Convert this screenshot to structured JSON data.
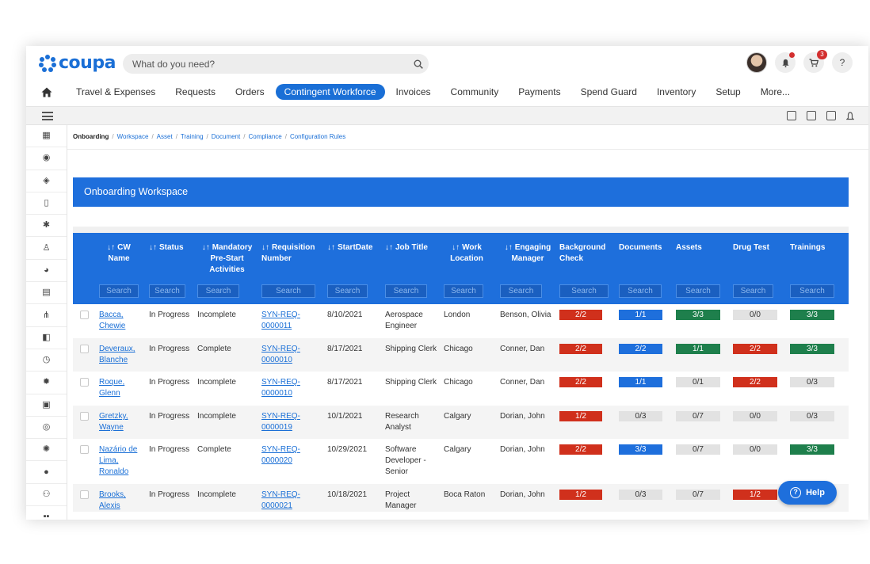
{
  "app": {
    "brand": "coupa",
    "brand_color": "#1a6fd6"
  },
  "search": {
    "placeholder": "What do you need?"
  },
  "header": {
    "cart_badge": "3",
    "help_label": "?"
  },
  "nav": {
    "items": [
      "Travel & Expenses",
      "Requests",
      "Orders",
      "Contingent Workforce",
      "Invoices",
      "Community",
      "Payments",
      "Spend Guard",
      "Inventory",
      "Setup",
      "More..."
    ],
    "active": "Contingent Workforce"
  },
  "breadcrumb": {
    "current": "Onboarding",
    "links": [
      "Workspace",
      "Asset",
      "Training",
      "Document",
      "Compliance",
      "Configuration Rules"
    ],
    "separator": "/"
  },
  "workspace": {
    "title": "Onboarding Workspace"
  },
  "table": {
    "sort_glyph": "↓↑",
    "search_placeholder": "Search",
    "columns": [
      "CW Name",
      "Status",
      "Mandatory Pre-Start Activities",
      "Requisition Number",
      "StartDate",
      "Job Title",
      "Work Location",
      "Engaging Manager",
      "Background Check",
      "Documents",
      "Assets",
      "Drug Test",
      "Trainings"
    ],
    "rows": [
      {
        "name": "Bacca, Chewie",
        "status": "In Progress",
        "mandatory": "Incomplete",
        "req": "SYN-REQ-0000011",
        "start": "8/10/2021",
        "job": "Aerospace Engineer",
        "location": "London",
        "manager": "Benson, Olivia",
        "bg": "2/2",
        "bg_c": "red",
        "docs": "1/1",
        "docs_c": "blue",
        "assets": "3/3",
        "assets_c": "green",
        "drug": "0/0",
        "drug_c": "grey",
        "train": "3/3",
        "train_c": "green"
      },
      {
        "name": "Deveraux, Blanche",
        "status": "In Progress",
        "mandatory": "Complete",
        "req": "SYN-REQ-0000010",
        "start": "8/17/2021",
        "job": "Shipping Clerk",
        "location": "Chicago",
        "manager": "Conner, Dan",
        "bg": "2/2",
        "bg_c": "red",
        "docs": "2/2",
        "docs_c": "blue",
        "assets": "1/1",
        "assets_c": "green",
        "drug": "2/2",
        "drug_c": "red",
        "train": "3/3",
        "train_c": "green"
      },
      {
        "name": "Roque, Glenn",
        "status": "In Progress",
        "mandatory": "Incomplete",
        "req": "SYN-REQ-0000010",
        "start": "8/17/2021",
        "job": "Shipping Clerk",
        "location": "Chicago",
        "manager": "Conner, Dan",
        "bg": "2/2",
        "bg_c": "red",
        "docs": "1/1",
        "docs_c": "blue",
        "assets": "0/1",
        "assets_c": "grey",
        "drug": "2/2",
        "drug_c": "red",
        "train": "0/3",
        "train_c": "grey"
      },
      {
        "name": "Gretzky, Wayne",
        "status": "In Progress",
        "mandatory": "Incomplete",
        "req": "SYN-REQ-0000019",
        "start": "10/1/2021",
        "job": "Research Analyst",
        "location": "Calgary",
        "manager": "Dorian, John",
        "bg": "1/2",
        "bg_c": "red",
        "docs": "0/3",
        "docs_c": "grey",
        "assets": "0/7",
        "assets_c": "grey",
        "drug": "0/0",
        "drug_c": "grey",
        "train": "0/3",
        "train_c": "grey"
      },
      {
        "name": "Nazário de Lima, Ronaldo",
        "status": "In Progress",
        "mandatory": "Complete",
        "req": "SYN-REQ-0000020",
        "start": "10/29/2021",
        "job": "Software Developer - Senior",
        "location": "Calgary",
        "manager": "Dorian, John",
        "bg": "2/2",
        "bg_c": "red",
        "docs": "3/3",
        "docs_c": "blue",
        "assets": "0/7",
        "assets_c": "grey",
        "drug": "0/0",
        "drug_c": "grey",
        "train": "3/3",
        "train_c": "green"
      },
      {
        "name": "Brooks, Alexis",
        "status": "In Progress",
        "mandatory": "Incomplete",
        "req": "SYN-REQ-0000021",
        "start": "10/18/2021",
        "job": "Project Manager",
        "location": "Boca Raton",
        "manager": "Dorian, John",
        "bg": "1/2",
        "bg_c": "red",
        "docs": "0/3",
        "docs_c": "grey",
        "assets": "0/7",
        "assets_c": "grey",
        "drug": "1/2",
        "drug_c": "red",
        "train": "",
        "train_c": "grey"
      }
    ]
  },
  "help": {
    "label": "Help"
  },
  "colors": {
    "blue": "#1e6fdc",
    "red": "#d0301c",
    "green": "#1e7f4c",
    "grey": "#e2e2e2"
  }
}
